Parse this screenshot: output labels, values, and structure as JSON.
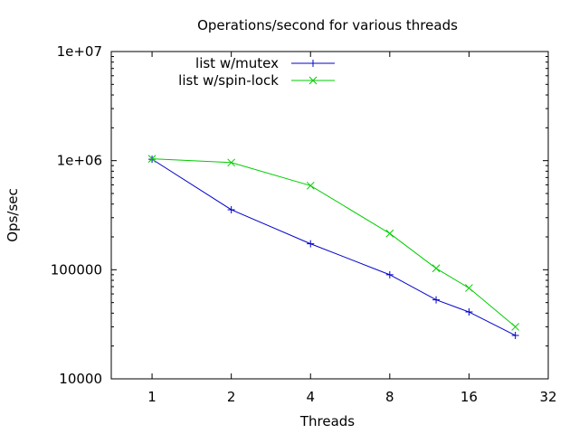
{
  "chart_data": {
    "type": "line",
    "title": "Operations/second for various threads",
    "xlabel": "Threads",
    "ylabel": "Ops/sec",
    "x_scale": "log2",
    "y_scale": "log10",
    "xlim": [
      0.7,
      32
    ],
    "ylim": [
      10000,
      10000000
    ],
    "x_ticks": [
      1,
      2,
      4,
      8,
      16,
      32
    ],
    "x_tick_labels": [
      "1",
      "2",
      "4",
      "8",
      "16",
      "32"
    ],
    "y_ticks": [
      10000,
      100000,
      1000000,
      10000000
    ],
    "y_tick_labels": [
      "10000",
      "100000",
      "1e+06",
      "1e+07"
    ],
    "grid": false,
    "legend_position": "top-left",
    "series": [
      {
        "name": "list w/mutex",
        "marker": "plus",
        "color": "#0000cc",
        "x": [
          1,
          2,
          4,
          8,
          12,
          16,
          24
        ],
        "y": [
          1030000,
          355000,
          173000,
          90000,
          53000,
          41000,
          25000
        ]
      },
      {
        "name": "list w/spin-lock",
        "marker": "cross",
        "color": "#00cc00",
        "x": [
          1,
          2,
          4,
          8,
          12,
          16,
          24
        ],
        "y": [
          1040000,
          960000,
          590000,
          215000,
          103000,
          68000,
          30000
        ]
      }
    ]
  }
}
